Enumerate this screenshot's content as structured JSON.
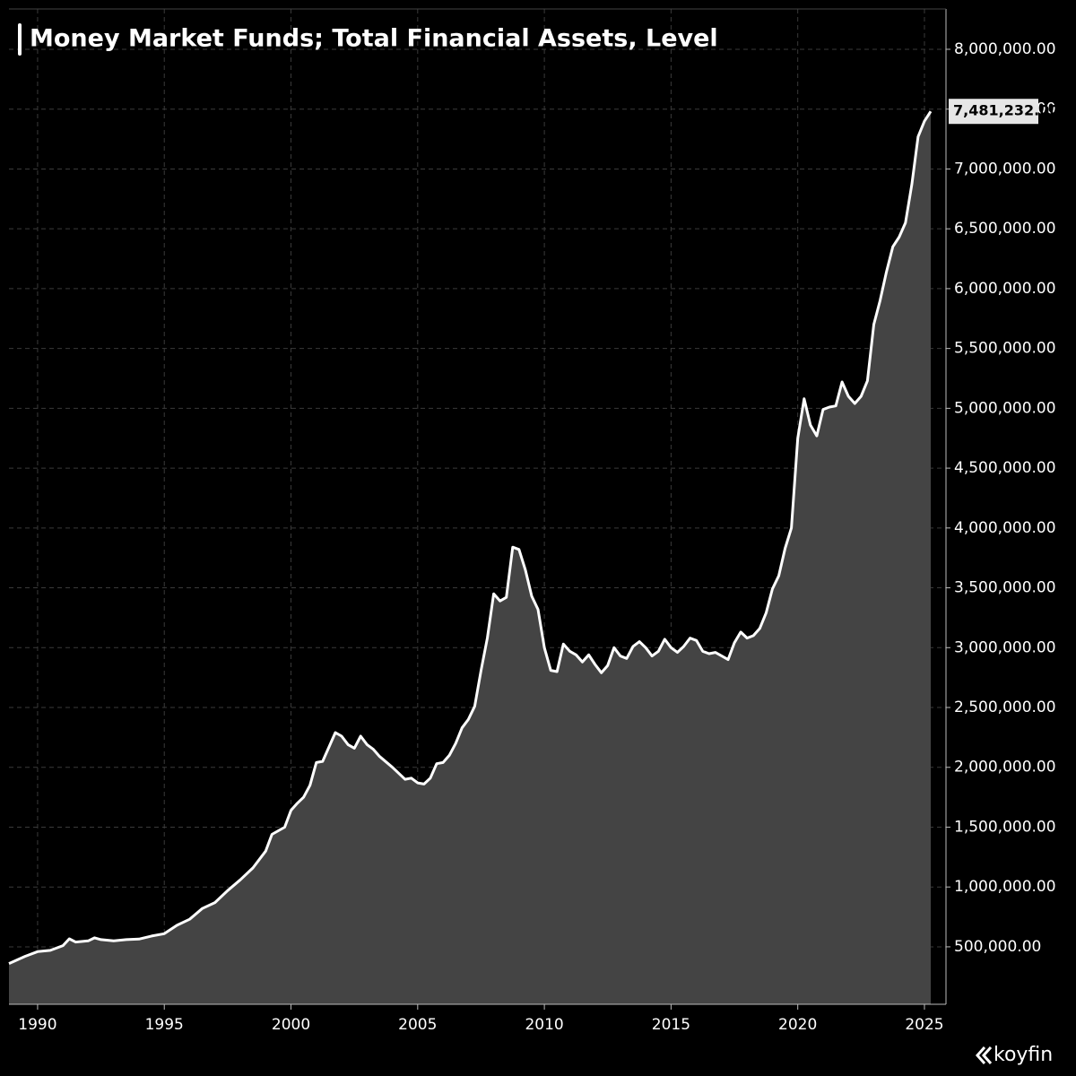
{
  "chart_data": {
    "type": "area",
    "title": "Money Market Funds; Total Financial Assets, Level",
    "brand": "koyfin",
    "color": "#ffffff",
    "fill": "#444444",
    "grid": true,
    "xlim": [
      1988.87,
      2025.85
    ],
    "ylim": [
      20000,
      8337000
    ],
    "xticks": [
      1990,
      1995,
      2000,
      2005,
      2010,
      2015,
      2020,
      2025
    ],
    "yticks": [
      {
        "value": 500000,
        "label": "500,000.00"
      },
      {
        "value": 1000000,
        "label": "1,000,000.00"
      },
      {
        "value": 1500000,
        "label": "1,500,000.00"
      },
      {
        "value": 2000000,
        "label": "2,000,000.00"
      },
      {
        "value": 2500000,
        "label": "2,500,000.00"
      },
      {
        "value": 3000000,
        "label": "3,000,000.00"
      },
      {
        "value": 3500000,
        "label": "3,500,000.00"
      },
      {
        "value": 4000000,
        "label": "4,000,000.00"
      },
      {
        "value": 4500000,
        "label": "4,500,000.00"
      },
      {
        "value": 5000000,
        "label": "5,000,000.00"
      },
      {
        "value": 5500000,
        "label": "5,500,000.00"
      },
      {
        "value": 6000000,
        "label": "6,000,000.00"
      },
      {
        "value": 6500000,
        "label": "6,500,000.00"
      },
      {
        "value": 7000000,
        "label": "7,000,000.00"
      },
      {
        "value": 7500000,
        "label": "7,500,000.00"
      },
      {
        "value": 8000000,
        "label": "8,000,000.00"
      }
    ],
    "x": [
      1988.87,
      1989.5,
      1990.0,
      1990.5,
      1991.0,
      1991.25,
      1991.5,
      1992.0,
      1992.25,
      1992.5,
      1993.0,
      1993.5,
      1994.0,
      1994.5,
      1995.0,
      1995.5,
      1996.0,
      1996.5,
      1997.0,
      1997.5,
      1998.0,
      1998.5,
      1999.0,
      1999.25,
      1999.75,
      2000.0,
      2000.25,
      2000.5,
      2000.75,
      2001.0,
      2001.25,
      2001.5,
      2001.75,
      2002.0,
      2002.25,
      2002.5,
      2002.75,
      2003.0,
      2003.25,
      2003.5,
      2004.0,
      2004.5,
      2004.75,
      2005.0,
      2005.25,
      2005.5,
      2005.75,
      2006.0,
      2006.25,
      2006.5,
      2006.75,
      2007.0,
      2007.25,
      2007.5,
      2007.75,
      2008.0,
      2008.25,
      2008.5,
      2008.75,
      2009.0,
      2009.25,
      2009.5,
      2009.75,
      2010.0,
      2010.25,
      2010.5,
      2010.75,
      2011.0,
      2011.25,
      2011.5,
      2011.75,
      2012.0,
      2012.25,
      2012.5,
      2012.75,
      2013.0,
      2013.25,
      2013.5,
      2013.75,
      2014.0,
      2014.25,
      2014.5,
      2014.75,
      2015.0,
      2015.25,
      2015.5,
      2015.75,
      2016.0,
      2016.25,
      2016.5,
      2016.75,
      2017.0,
      2017.25,
      2017.5,
      2017.75,
      2018.0,
      2018.25,
      2018.5,
      2018.75,
      2019.0,
      2019.25,
      2019.5,
      2019.75,
      2020.0,
      2020.25,
      2020.5,
      2020.75,
      2021.0,
      2021.25,
      2021.5,
      2021.75,
      2022.0,
      2022.25,
      2022.5,
      2022.75,
      2023.0,
      2023.25,
      2023.5,
      2023.75,
      2024.0,
      2024.25,
      2024.5,
      2024.75,
      2025.0,
      2025.25
    ],
    "values": [
      360000,
      420000,
      460000,
      470000,
      510000,
      567000,
      540000,
      550000,
      575000,
      560000,
      550000,
      560000,
      565000,
      590000,
      610000,
      680000,
      730000,
      820000,
      870000,
      970000,
      1060000,
      1160000,
      1300000,
      1440000,
      1500000,
      1640000,
      1700000,
      1750000,
      1850000,
      2040000,
      2050000,
      2170000,
      2290000,
      2260000,
      2190000,
      2160000,
      2260000,
      2190000,
      2150000,
      2090000,
      2000000,
      1900000,
      1910000,
      1870000,
      1860000,
      1910000,
      2030000,
      2040000,
      2100000,
      2200000,
      2330000,
      2400000,
      2510000,
      2810000,
      3080000,
      3450000,
      3390000,
      3420000,
      3840000,
      3820000,
      3650000,
      3430000,
      3320000,
      3000000,
      2810000,
      2800000,
      3030000,
      2970000,
      2940000,
      2880000,
      2940000,
      2860000,
      2790000,
      2850000,
      3000000,
      2930000,
      2910000,
      3010000,
      3050000,
      3000000,
      2930000,
      2970000,
      3070000,
      3000000,
      2960000,
      3010000,
      3080000,
      3060000,
      2970000,
      2950000,
      2960000,
      2930000,
      2900000,
      3040000,
      3130000,
      3080000,
      3100000,
      3160000,
      3290000,
      3490000,
      3600000,
      3830000,
      4000000,
      4750000,
      5080000,
      4860000,
      4770000,
      4990000,
      5010000,
      5020000,
      5220000,
      5100000,
      5040000,
      5100000,
      5230000,
      5700000,
      5900000,
      6140000,
      6350000,
      6430000,
      6550000,
      6870000,
      7270000,
      7400000,
      7481232
    ],
    "value_labels": [
      null,
      null,
      null,
      null,
      null,
      null,
      null,
      null,
      null,
      null,
      null,
      null,
      null,
      null,
      null,
      null,
      null,
      null,
      null,
      null,
      null,
      null,
      null,
      null,
      null,
      null,
      null,
      null,
      null,
      null,
      null,
      null,
      null,
      null,
      null,
      null,
      null,
      null,
      null,
      null,
      null,
      null,
      null,
      null,
      null,
      null,
      null,
      null,
      null,
      null,
      null,
      null,
      null,
      null,
      null,
      null,
      null,
      null,
      null,
      null,
      null,
      null,
      null,
      null,
      null,
      null,
      null,
      null,
      null,
      null,
      null,
      null,
      null,
      null,
      null,
      null,
      null,
      null,
      null,
      null,
      null,
      null,
      null,
      null,
      null,
      null,
      null,
      null,
      null,
      null,
      null,
      null,
      null,
      null,
      null,
      null,
      null,
      null,
      null,
      null,
      null,
      null,
      null,
      null,
      null,
      null,
      null,
      null,
      null,
      null,
      null,
      null,
      null,
      null,
      null,
      null,
      null,
      null,
      null,
      null,
      null,
      null,
      null,
      null,
      "7,481,232.00"
    ]
  }
}
